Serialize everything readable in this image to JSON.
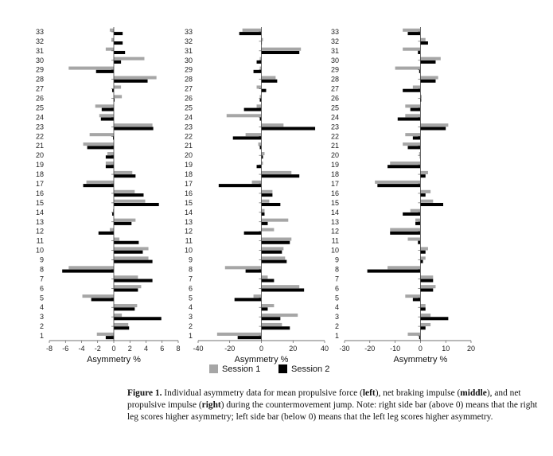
{
  "chart_data": [
    {
      "type": "bar",
      "orientation": "horizontal",
      "categories": [
        "1",
        "2",
        "3",
        "4",
        "5",
        "6",
        "7",
        "8",
        "9",
        "10",
        "11",
        "12",
        "13",
        "14",
        "15",
        "16",
        "17",
        "18",
        "19",
        "20",
        "21",
        "22",
        "23",
        "24",
        "25",
        "26",
        "27",
        "28",
        "29",
        "30",
        "31",
        "32",
        "33"
      ],
      "series": [
        {
          "name": "Session 1",
          "values": [
            -2.1,
            1.8,
            1.0,
            2.9,
            -3.9,
            3.4,
            3.0,
            -5.6,
            4.3,
            4.3,
            0.7,
            -0.5,
            2.7,
            -0.1,
            3.9,
            2.6,
            -3.4,
            2.3,
            -1.0,
            -0.8,
            -3.8,
            -3.0,
            4.8,
            -1.8,
            -2.3,
            1.0,
            0.9,
            5.3,
            -5.6,
            3.8,
            -1.0,
            -0.3,
            -0.5
          ]
        },
        {
          "name": "Session 2",
          "values": [
            -1.0,
            1.9,
            5.9,
            2.6,
            -2.8,
            3.0,
            4.8,
            -6.4,
            4.8,
            3.6,
            3.1,
            -1.9,
            2.2,
            -0.2,
            5.6,
            3.7,
            -3.8,
            2.7,
            -1.0,
            -1.0,
            -3.3,
            -0.1,
            4.9,
            -1.6,
            -1.5,
            0.1,
            -0.2,
            4.2,
            -2.2,
            0.9,
            1.4,
            1.1,
            1.1
          ]
        }
      ],
      "xlabel": "Asymmetry %",
      "xlim": [
        -8,
        8
      ],
      "xticks": [
        -8,
        -6,
        -4,
        -2,
        0,
        2,
        4,
        6,
        8
      ]
    },
    {
      "type": "bar",
      "orientation": "horizontal",
      "categories": [
        "1",
        "2",
        "3",
        "4",
        "5",
        "6",
        "7",
        "8",
        "9",
        "10",
        "11",
        "12",
        "13",
        "14",
        "15",
        "16",
        "17",
        "18",
        "19",
        "20",
        "21",
        "22",
        "23",
        "24",
        "25",
        "26",
        "27",
        "28",
        "29",
        "30",
        "31",
        "32",
        "33"
      ],
      "series": [
        {
          "name": "Session 1",
          "values": [
            -28,
            13,
            23,
            8,
            -5,
            24,
            4,
            -23,
            15,
            14,
            19,
            8,
            17,
            2,
            5,
            7,
            -6,
            19,
            1,
            2,
            -2,
            -10,
            14,
            -22,
            -3,
            -1,
            -3,
            9,
            -1,
            -1,
            25,
            1,
            -12
          ]
        },
        {
          "name": "Session 2",
          "values": [
            -15,
            18,
            12,
            4,
            -17,
            27,
            8,
            -10,
            16,
            13,
            18,
            -11,
            4,
            2,
            12,
            7,
            -27,
            24,
            -3,
            1,
            -1,
            -18,
            34,
            -1,
            -11,
            -1,
            3,
            10,
            -5,
            -3,
            24,
            0,
            -14
          ]
        }
      ],
      "xlabel": "Asymmetry %",
      "xlim": [
        -40,
        40
      ],
      "xticks": [
        -40,
        -20,
        0,
        20,
        40
      ]
    },
    {
      "type": "bar",
      "orientation": "horizontal",
      "categories": [
        "1",
        "2",
        "3",
        "4",
        "5",
        "6",
        "7",
        "8",
        "9",
        "10",
        "11",
        "12",
        "13",
        "14",
        "15",
        "16",
        "17",
        "18",
        "19",
        "20",
        "21",
        "22",
        "23",
        "24",
        "25",
        "26",
        "27",
        "28",
        "29",
        "30",
        "31",
        "32",
        "33"
      ],
      "series": [
        {
          "name": "Session 1",
          "values": [
            -5,
            4,
            4,
            2,
            -6,
            6,
            5,
            -13,
            2,
            3,
            -5,
            -12,
            -2,
            -4,
            5,
            4,
            -18,
            3,
            -12,
            -0.5,
            -7,
            -6,
            11,
            -6,
            -6,
            0.5,
            -3,
            7,
            -10,
            8,
            -7,
            2,
            -7
          ]
        },
        {
          "name": "Session 2",
          "values": [
            -0.5,
            2,
            11,
            2,
            -3,
            5,
            5,
            -21,
            1,
            2,
            -1,
            -12,
            -2,
            -7,
            9,
            2,
            -17,
            2,
            -13,
            -0.2,
            -5,
            -3,
            10,
            -9,
            -4,
            0.3,
            -7,
            6,
            -0.5,
            6,
            -1,
            3,
            -5
          ]
        }
      ],
      "xlabel": "Asymmetry %",
      "xlim": [
        -30,
        20
      ],
      "xticks": [
        -30,
        -20,
        -10,
        0,
        10,
        20
      ]
    }
  ],
  "legend": {
    "items": [
      {
        "label": "Session 1",
        "color": "#a6a6a6"
      },
      {
        "label": "Session 2",
        "color": "#000000"
      }
    ]
  },
  "caption": {
    "label": "Figure 1.",
    "parts": [
      {
        "text": " Individual asymmetry data for mean propulsive force (",
        "bold": false
      },
      {
        "text": "left",
        "bold": true
      },
      {
        "text": "), net braking impulse (",
        "bold": false
      },
      {
        "text": "middle",
        "bold": true
      },
      {
        "text": "), and net propulsive impulse (",
        "bold": false
      },
      {
        "text": "right",
        "bold": true
      },
      {
        "text": ") during the countermovement jump. Note: right side bar (above 0) means that the right leg scores higher asymmetry; left side bar (below 0) means that the left leg scores higher asymmetry.",
        "bold": false
      }
    ]
  }
}
